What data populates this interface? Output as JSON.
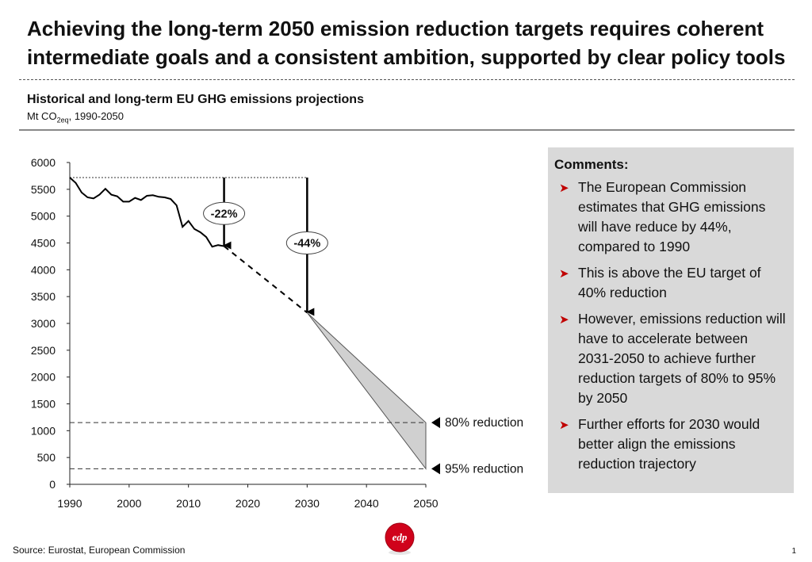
{
  "headline": "Achieving the long-term 2050 emission reduction targets requires coherent intermediate goals and a consistent ambition, supported by clear policy tools",
  "chart_header": {
    "title": "Historical and long-term EU GHG emissions projections",
    "unit_prefix": "Mt CO",
    "unit_sub": "2eq",
    "unit_suffix": ", 1990-2050"
  },
  "comments": {
    "title": "Comments:",
    "items": [
      "The European Commission estimates that GHG emissions will have reduce by 44%, compared to 1990",
      "This is above the EU target of 40% reduction",
      "However, emissions reduction will have to accelerate between 2031-2050 to achieve further reduction targets of 80% to 95% by 2050",
      "Further efforts for 2030 would better align the emissions reduction trajectory"
    ]
  },
  "source": "Source: Eurostat, European Commission",
  "page_number": "1",
  "logo_text": "edp",
  "colors": {
    "accent": "#c00000",
    "panel": "#d9d9d9",
    "cone": "#d0d0d0"
  },
  "chart_data": {
    "type": "line",
    "xlim": [
      1990,
      2050
    ],
    "ylim": [
      0,
      6000
    ],
    "x_ticks": [
      1990,
      2000,
      2010,
      2020,
      2030,
      2040,
      2050
    ],
    "y_ticks": [
      0,
      500,
      1000,
      1500,
      2000,
      2500,
      3000,
      3500,
      4000,
      4500,
      5000,
      5500,
      6000
    ],
    "historical": {
      "x": [
        1990,
        1991,
        1992,
        1993,
        1994,
        1995,
        1996,
        1997,
        1998,
        1999,
        2000,
        2001,
        2002,
        2003,
        2004,
        2005,
        2006,
        2007,
        2008,
        2009,
        2010,
        2011,
        2012,
        2013,
        2014,
        2015,
        2016
      ],
      "y": [
        5720,
        5620,
        5440,
        5350,
        5330,
        5400,
        5510,
        5400,
        5370,
        5270,
        5270,
        5340,
        5300,
        5380,
        5390,
        5360,
        5350,
        5320,
        5200,
        4800,
        4910,
        4760,
        4700,
        4610,
        4430,
        4460,
        4440
      ]
    },
    "projection": {
      "x": [
        2016,
        2030
      ],
      "y": [
        4440,
        3200
      ]
    },
    "cone": {
      "x": 2030,
      "y": 3200,
      "end_x": 2050,
      "upper": 1150,
      "lower": 290
    },
    "reference_lines": [
      {
        "y": 5720,
        "x_end": 2030,
        "label": ""
      },
      {
        "y": 1150,
        "x_end": 2050,
        "label": "80% reduction"
      },
      {
        "y": 290,
        "x_end": 2050,
        "label": "95% reduction"
      }
    ],
    "reductions": [
      {
        "x": 2016,
        "y_from": 5720,
        "y_to": 4440,
        "label": "-22%",
        "label_y": 5050
      },
      {
        "x": 2030,
        "y_from": 5720,
        "y_to": 3200,
        "label": "-44%",
        "label_y": 4500
      }
    ]
  }
}
